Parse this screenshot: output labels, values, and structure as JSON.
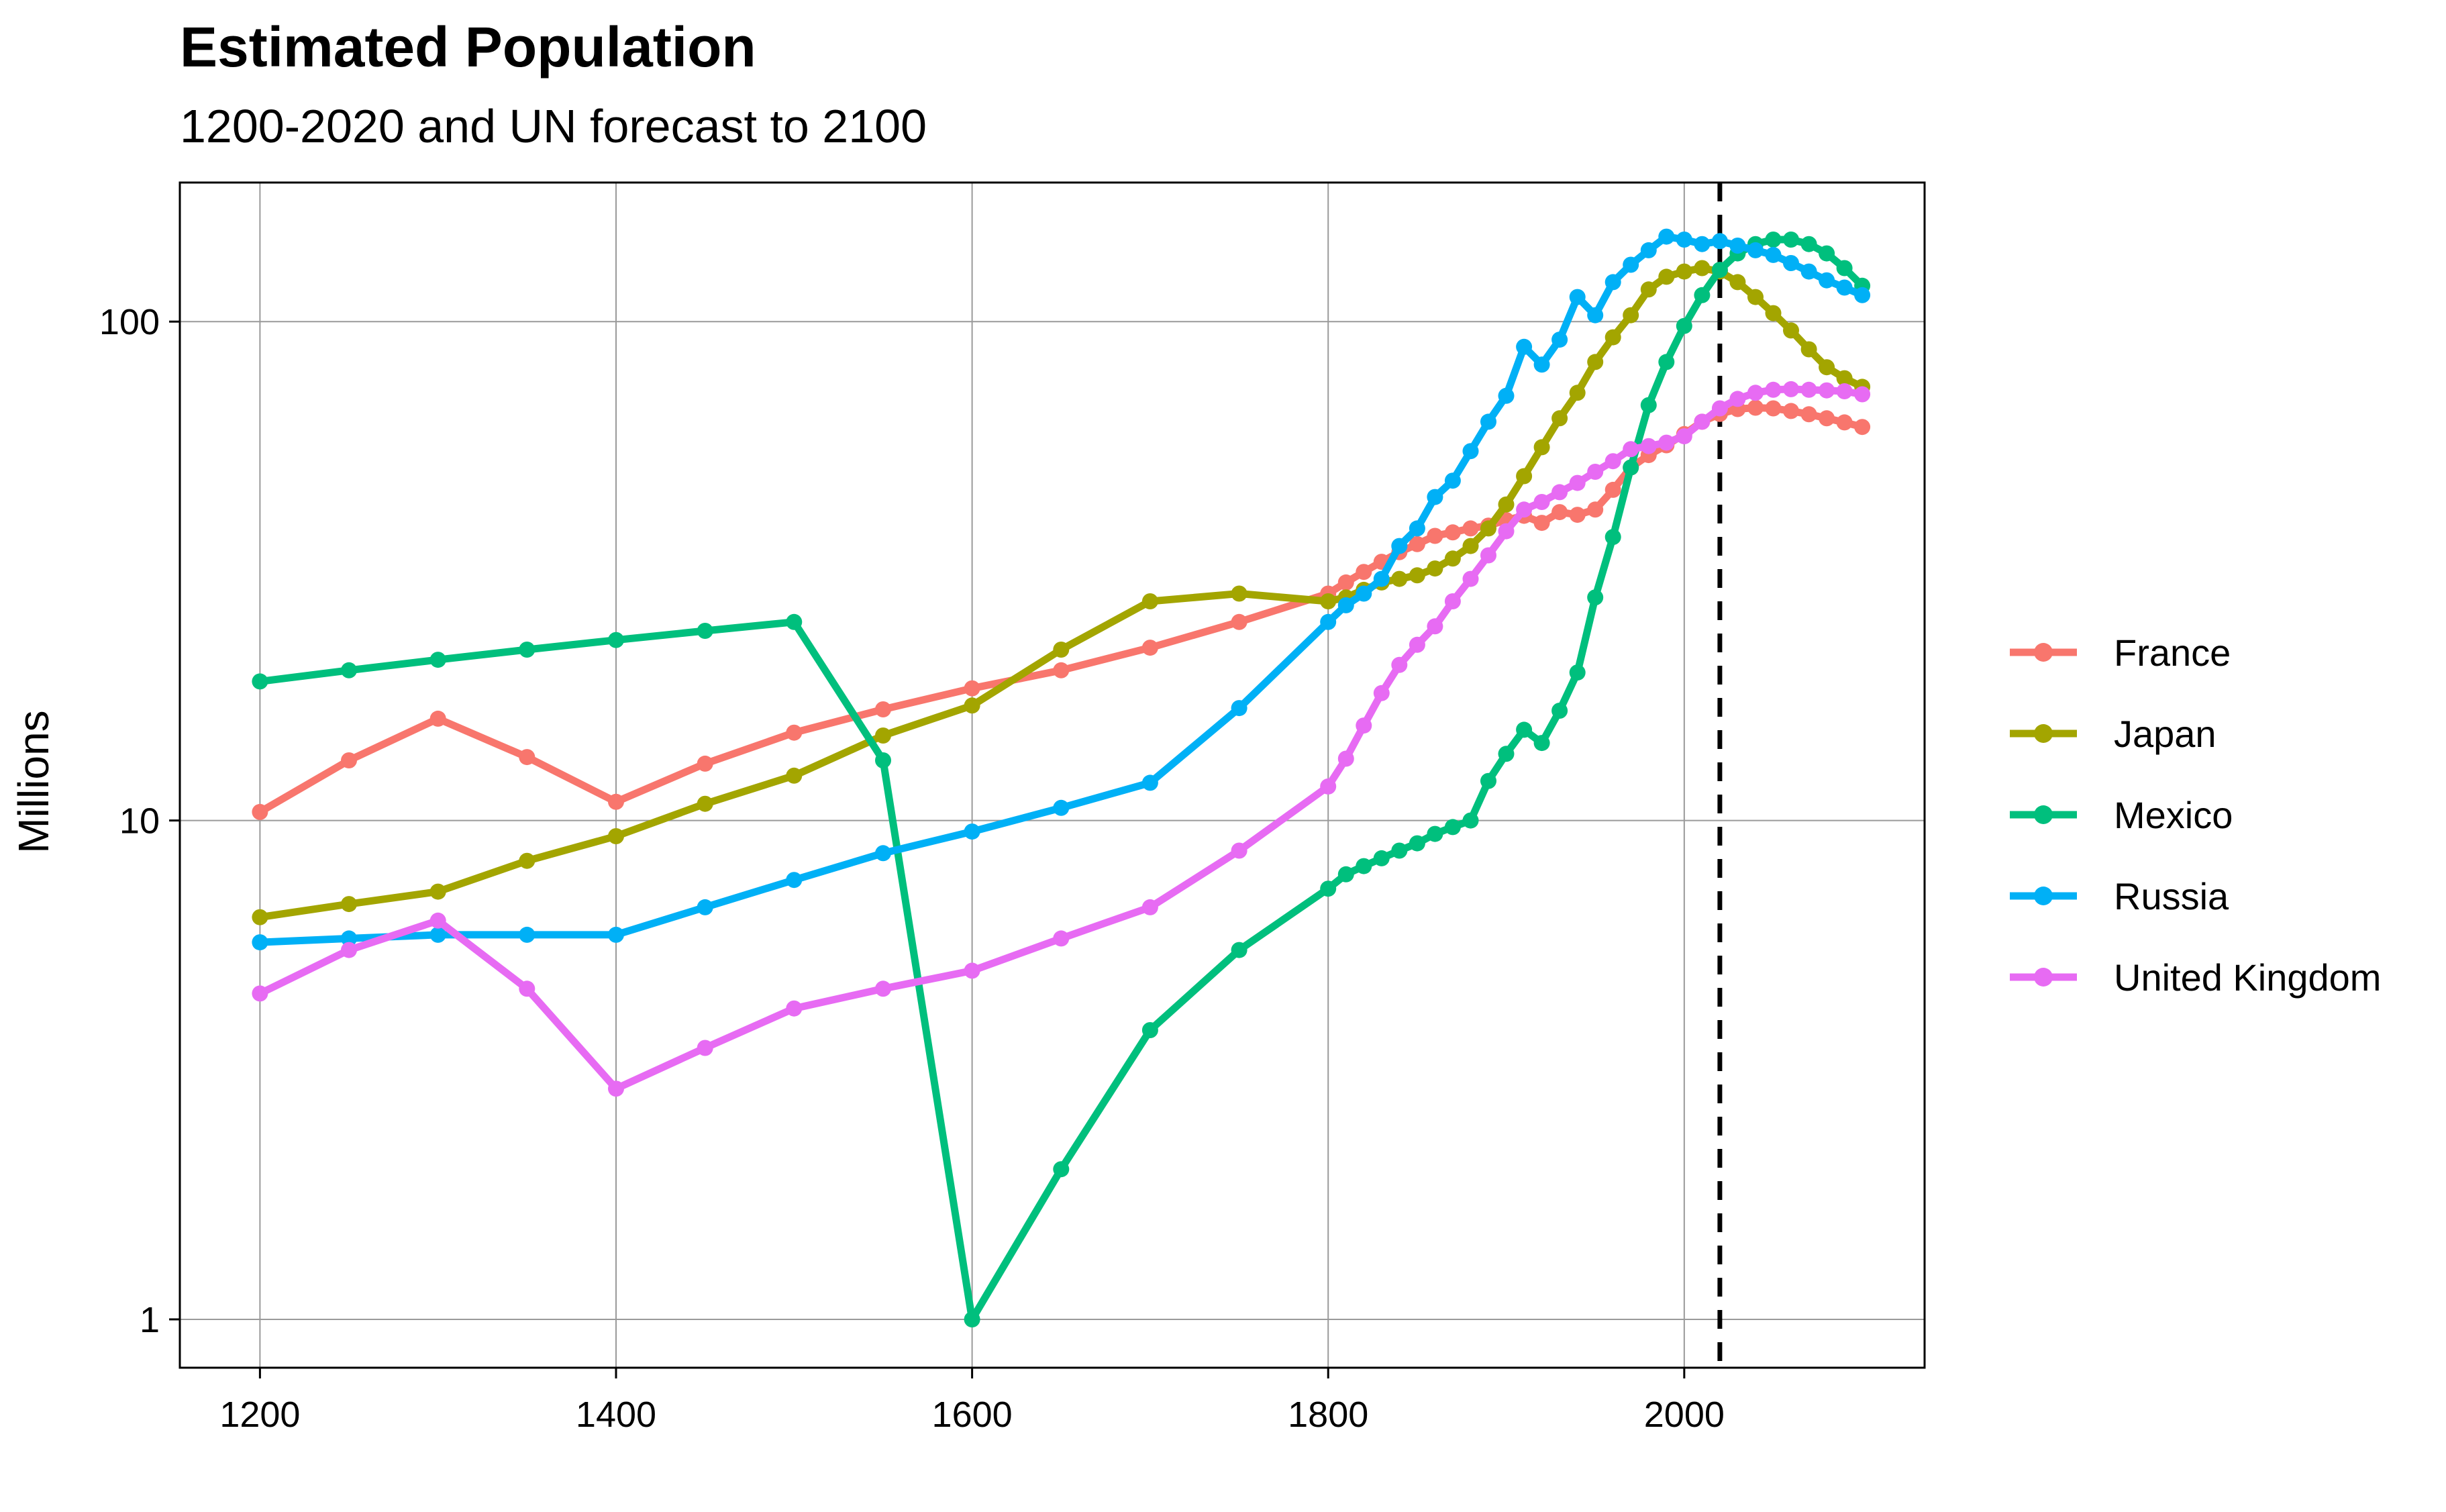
{
  "chart_data": {
    "type": "line",
    "title": "Estimated Population",
    "subtitle": "1200-2020 and UN forecast to 2100",
    "xlabel": "",
    "ylabel": "Millions",
    "x_scale": "linear",
    "y_scale": "log10",
    "xlim": [
      1155,
      2135
    ],
    "ylim": [
      0.8,
      190
    ],
    "x_ticks": [
      1200,
      1400,
      1600,
      1800,
      2000
    ],
    "x_tick_labels": [
      "1200",
      "1400",
      "1600",
      "1800",
      "2000"
    ],
    "y_ticks": [
      1,
      10,
      100
    ],
    "y_tick_labels": [
      "1",
      "10",
      "100"
    ],
    "grid": true,
    "legend_position": "right",
    "reference_line": {
      "x": 2020,
      "style": "dashed",
      "color": "#000000"
    },
    "series": [
      {
        "name": "France",
        "color": "#F8766D",
        "points": [
          [
            1200,
            10.4
          ],
          [
            1250,
            13.2
          ],
          [
            1300,
            16.0
          ],
          [
            1350,
            13.4
          ],
          [
            1400,
            10.9
          ],
          [
            1450,
            13.0
          ],
          [
            1500,
            15.0
          ],
          [
            1550,
            16.7
          ],
          [
            1600,
            18.4
          ],
          [
            1650,
            20.0
          ],
          [
            1700,
            22.2
          ],
          [
            1750,
            25.0
          ],
          [
            1800,
            28.5
          ],
          [
            1810,
            30.0
          ],
          [
            1820,
            31.5
          ],
          [
            1830,
            33.0
          ],
          [
            1840,
            34.5
          ],
          [
            1850,
            35.8
          ],
          [
            1860,
            37.2
          ],
          [
            1870,
            37.8
          ],
          [
            1880,
            38.5
          ],
          [
            1890,
            39.0
          ],
          [
            1900,
            40.0
          ],
          [
            1910,
            40.8
          ],
          [
            1920,
            39.5
          ],
          [
            1930,
            41.5
          ],
          [
            1940,
            41.0
          ],
          [
            1950,
            42.0
          ],
          [
            1960,
            46.0
          ],
          [
            1970,
            51.0
          ],
          [
            1980,
            54.0
          ],
          [
            1990,
            56.5
          ],
          [
            2000,
            59.5
          ],
          [
            2010,
            63.0
          ],
          [
            2020,
            65.3
          ],
          [
            2030,
            66.8
          ],
          [
            2040,
            67.2
          ],
          [
            2050,
            67.0
          ],
          [
            2060,
            66.2
          ],
          [
            2070,
            65.2
          ],
          [
            2080,
            64.0
          ],
          [
            2090,
            62.8
          ],
          [
            2100,
            61.5
          ]
        ]
      },
      {
        "name": "Japan",
        "color": "#A3A500",
        "points": [
          [
            1200,
            6.4
          ],
          [
            1250,
            6.8
          ],
          [
            1300,
            7.2
          ],
          [
            1350,
            8.3
          ],
          [
            1400,
            9.3
          ],
          [
            1450,
            10.8
          ],
          [
            1500,
            12.3
          ],
          [
            1550,
            14.8
          ],
          [
            1600,
            17.0
          ],
          [
            1650,
            22.0
          ],
          [
            1700,
            27.5
          ],
          [
            1750,
            28.5
          ],
          [
            1800,
            27.5
          ],
          [
            1810,
            28.0
          ],
          [
            1820,
            29.0
          ],
          [
            1830,
            30.0
          ],
          [
            1840,
            30.5
          ],
          [
            1850,
            31.0
          ],
          [
            1860,
            32.0
          ],
          [
            1870,
            33.5
          ],
          [
            1880,
            35.5
          ],
          [
            1890,
            38.5
          ],
          [
            1900,
            43.0
          ],
          [
            1910,
            49.0
          ],
          [
            1920,
            56.0
          ],
          [
            1930,
            64.0
          ],
          [
            1940,
            72.0
          ],
          [
            1950,
            83.0
          ],
          [
            1960,
            93.0
          ],
          [
            1970,
            103.0
          ],
          [
            1980,
            116.0
          ],
          [
            1990,
            123.0
          ],
          [
            2000,
            126.0
          ],
          [
            2010,
            128.0
          ],
          [
            2020,
            126.0
          ],
          [
            2030,
            120.0
          ],
          [
            2040,
            112.0
          ],
          [
            2050,
            104.0
          ],
          [
            2060,
            96.0
          ],
          [
            2070,
            88.0
          ],
          [
            2080,
            81.0
          ],
          [
            2090,
            77.0
          ],
          [
            2100,
            74.0
          ]
        ]
      },
      {
        "name": "Mexico",
        "color": "#00BF7D",
        "points": [
          [
            1200,
            19.0
          ],
          [
            1250,
            20.0
          ],
          [
            1300,
            21.0
          ],
          [
            1350,
            22.0
          ],
          [
            1400,
            23.0
          ],
          [
            1450,
            24.0
          ],
          [
            1500,
            25.0
          ],
          [
            1550,
            13.2
          ],
          [
            1600,
            1.0
          ],
          [
            1650,
            2.0
          ],
          [
            1700,
            3.8
          ],
          [
            1750,
            5.5
          ],
          [
            1800,
            7.3
          ],
          [
            1810,
            7.8
          ],
          [
            1820,
            8.1
          ],
          [
            1830,
            8.4
          ],
          [
            1840,
            8.7
          ],
          [
            1850,
            9.0
          ],
          [
            1860,
            9.4
          ],
          [
            1870,
            9.7
          ],
          [
            1880,
            10.0
          ],
          [
            1890,
            12.0
          ],
          [
            1900,
            13.6
          ],
          [
            1910,
            15.2
          ],
          [
            1920,
            14.3
          ],
          [
            1930,
            16.6
          ],
          [
            1940,
            19.8
          ],
          [
            1950,
            28.0
          ],
          [
            1960,
            37.0
          ],
          [
            1970,
            51.0
          ],
          [
            1980,
            68.0
          ],
          [
            1990,
            83.0
          ],
          [
            2000,
            98.0
          ],
          [
            2010,
            113.0
          ],
          [
            2020,
            127.0
          ],
          [
            2030,
            137.0
          ],
          [
            2040,
            143.0
          ],
          [
            2050,
            146.0
          ],
          [
            2060,
            146.0
          ],
          [
            2070,
            143.0
          ],
          [
            2080,
            137.0
          ],
          [
            2090,
            128.0
          ],
          [
            2100,
            118.0
          ]
        ]
      },
      {
        "name": "Russia",
        "color": "#00B0F6",
        "points": [
          [
            1200,
            5.7
          ],
          [
            1250,
            5.8
          ],
          [
            1300,
            5.9
          ],
          [
            1350,
            5.9
          ],
          [
            1400,
            5.9
          ],
          [
            1450,
            6.7
          ],
          [
            1500,
            7.6
          ],
          [
            1550,
            8.6
          ],
          [
            1600,
            9.5
          ],
          [
            1650,
            10.6
          ],
          [
            1700,
            11.9
          ],
          [
            1750,
            16.8
          ],
          [
            1800,
            25.0
          ],
          [
            1810,
            27.0
          ],
          [
            1820,
            28.5
          ],
          [
            1830,
            30.5
          ],
          [
            1840,
            35.5
          ],
          [
            1850,
            38.5
          ],
          [
            1860,
            44.5
          ],
          [
            1870,
            48.0
          ],
          [
            1880,
            55.0
          ],
          [
            1890,
            63.0
          ],
          [
            1900,
            71.0
          ],
          [
            1910,
            89.0
          ],
          [
            1920,
            82.0
          ],
          [
            1930,
            92.0
          ],
          [
            1940,
            112.0
          ],
          [
            1950,
            103.0
          ],
          [
            1960,
            120.0
          ],
          [
            1970,
            130.0
          ],
          [
            1980,
            139.0
          ],
          [
            1990,
            148.0
          ],
          [
            2000,
            146.0
          ],
          [
            2010,
            143.0
          ],
          [
            2020,
            145.0
          ],
          [
            2030,
            142.0
          ],
          [
            2040,
            139.0
          ],
          [
            2050,
            136.0
          ],
          [
            2060,
            131.0
          ],
          [
            2070,
            126.0
          ],
          [
            2080,
            121.0
          ],
          [
            2090,
            117.0
          ],
          [
            2100,
            113.0
          ]
        ]
      },
      {
        "name": "United Kingdom",
        "color": "#E76BF3",
        "points": [
          [
            1200,
            4.5
          ],
          [
            1250,
            5.5
          ],
          [
            1300,
            6.3
          ],
          [
            1350,
            4.6
          ],
          [
            1400,
            2.9
          ],
          [
            1450,
            3.5
          ],
          [
            1500,
            4.2
          ],
          [
            1550,
            4.6
          ],
          [
            1600,
            5.0
          ],
          [
            1650,
            5.8
          ],
          [
            1700,
            6.7
          ],
          [
            1750,
            8.7
          ],
          [
            1800,
            11.7
          ],
          [
            1810,
            13.3
          ],
          [
            1820,
            15.5
          ],
          [
            1830,
            18.0
          ],
          [
            1840,
            20.5
          ],
          [
            1850,
            22.5
          ],
          [
            1860,
            24.5
          ],
          [
            1870,
            27.5
          ],
          [
            1880,
            30.5
          ],
          [
            1890,
            34.0
          ],
          [
            1900,
            38.0
          ],
          [
            1910,
            42.0
          ],
          [
            1920,
            43.5
          ],
          [
            1930,
            45.5
          ],
          [
            1940,
            47.5
          ],
          [
            1950,
            50.0
          ],
          [
            1960,
            52.5
          ],
          [
            1970,
            55.5
          ],
          [
            1980,
            56.3
          ],
          [
            1990,
            57.2
          ],
          [
            2000,
            58.9
          ],
          [
            2010,
            63.0
          ],
          [
            2020,
            67.0
          ],
          [
            2030,
            70.0
          ],
          [
            2040,
            72.0
          ],
          [
            2050,
            73.0
          ],
          [
            2060,
            73.2
          ],
          [
            2070,
            73.0
          ],
          [
            2080,
            72.8
          ],
          [
            2090,
            72.5
          ],
          [
            2100,
            71.5
          ]
        ]
      }
    ]
  }
}
